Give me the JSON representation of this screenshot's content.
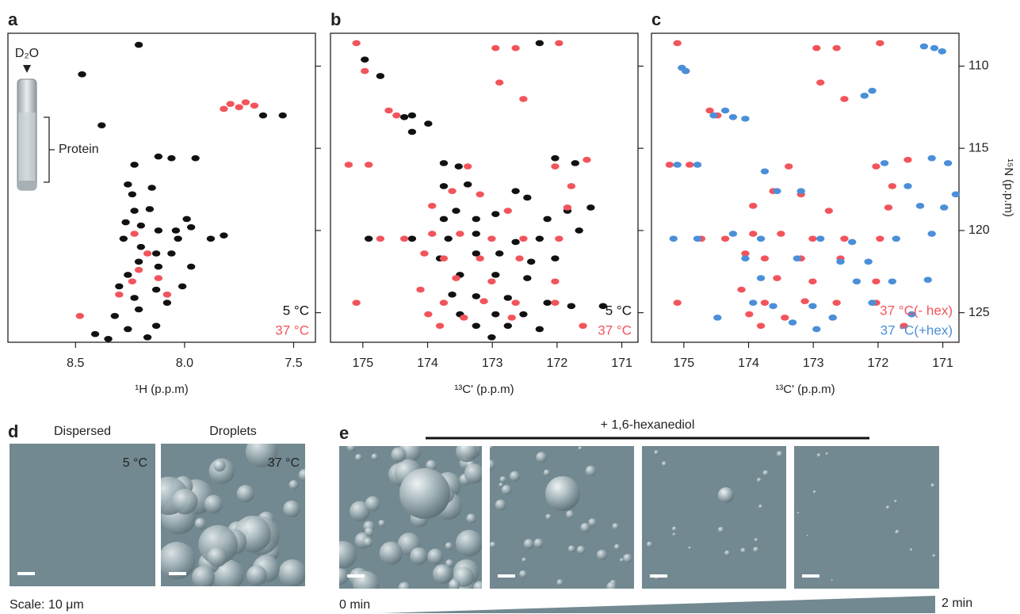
{
  "chart_data": [
    {
      "type": "scatter",
      "label": "a",
      "x_label": "¹H (p.p.m)",
      "annotations": [
        "D₂O",
        "Protein"
      ],
      "xlim": [
        8.81,
        7.4
      ],
      "ylim": [
        126.8,
        108
      ],
      "xticks": [
        8.5,
        {
          "value": 8,
          "label": "8.0"
        },
        7.5
      ],
      "yticks": [
        110,
        115,
        120,
        125
      ],
      "show_ytick_labels": false,
      "legend": "lower right",
      "series": [
        {
          "name": "5 °C",
          "color": "#111111",
          "x": [
            8.21,
            8.47,
            8.38,
            7.64,
            7.55,
            8.23,
            8.12,
            8.06,
            7.95,
            8.26,
            8.24,
            8.15,
            8.23,
            8.16,
            8.27,
            8.2,
            8.12,
            8.04,
            7.97,
            7.99,
            7.88,
            7.82,
            8.28,
            8.2,
            8.13,
            8.06,
            8.03,
            8.21,
            8.12,
            7.97,
            8.26,
            8.3,
            8.23,
            8.13,
            8.08,
            8.01,
            8.21,
            8.32,
            8.26,
            8.13,
            8.41,
            8.35,
            8.17
          ],
          "y": [
            108.7,
            110.5,
            113.6,
            113.0,
            113.0,
            116.0,
            115.5,
            115.6,
            115.6,
            117.2,
            117.8,
            117.4,
            118.8,
            118.7,
            119.5,
            119.7,
            120.0,
            120.0,
            119.8,
            119.3,
            120.5,
            120.3,
            120.5,
            121.0,
            121.4,
            121.4,
            120.5,
            121.9,
            122.2,
            122.2,
            122.7,
            123.4,
            124.1,
            123.6,
            124.4,
            123.4,
            124.8,
            125.2,
            126.0,
            125.8,
            126.3,
            126.6,
            126.5
          ]
        },
        {
          "name": "37 °C",
          "color": "#f2545b",
          "x": [
            7.79,
            7.75,
            7.72,
            7.82,
            7.68,
            8.23,
            8.17,
            8.24,
            8.12,
            8.3,
            8.21,
            8.48,
            8.08
          ],
          "y": [
            112.3,
            112.5,
            112.2,
            112.6,
            112.4,
            120.2,
            121.4,
            123.1,
            122.9,
            123.9,
            122.4,
            125.2,
            123.9
          ]
        }
      ]
    },
    {
      "type": "scatter",
      "label": "b",
      "x_label": "¹³C' (p.p.m)",
      "xlim": [
        175.5,
        170.75
      ],
      "ylim": [
        126.8,
        108
      ],
      "xticks": [
        175,
        174,
        173,
        172,
        171
      ],
      "yticks": [
        110,
        115,
        120,
        125
      ],
      "show_ytick_labels": false,
      "legend": "lower right",
      "series": [
        {
          "name": "5 °C",
          "color": "#111111",
          "x": [
            172.27,
            174.97,
            174.73,
            174.24,
            173.99,
            174.36,
            174.24,
            173.75,
            173.52,
            172.03,
            171.72,
            173.75,
            173.38,
            172.64,
            172.46,
            171.48,
            173.56,
            173.75,
            173.25,
            172.95,
            172.15,
            171.84,
            174.91,
            174.24,
            173.68,
            173.25,
            172.64,
            172.27,
            171.66,
            173.81,
            173.25,
            172.89,
            172.4,
            172.03,
            173.5,
            172.95,
            172.46,
            173.62,
            173.25,
            172.76,
            172.15,
            171.78,
            171.29,
            173.5,
            172.95,
            172.52,
            173.25,
            172.76,
            172.27,
            173.01
          ],
          "y": [
            108.6,
            109.6,
            110.6,
            113.0,
            113.5,
            113.1,
            114.0,
            115.9,
            116.1,
            115.6,
            115.9,
            117.3,
            117.2,
            117.6,
            118.0,
            118.6,
            118.8,
            119.3,
            119.3,
            119.0,
            119.3,
            118.8,
            120.5,
            120.5,
            120.5,
            120.2,
            120.7,
            120.5,
            120.0,
            121.7,
            121.4,
            121.4,
            121.9,
            121.7,
            122.7,
            122.7,
            122.9,
            123.9,
            124.0,
            124.1,
            124.4,
            124.6,
            124.6,
            125.1,
            125.1,
            125.1,
            125.8,
            125.8,
            126.0,
            126.5
          ]
        },
        {
          "name": "37 °C",
          "color": "#f2545b",
          "x": [
            175.1,
            172.95,
            172.64,
            171.97,
            174.97,
            174.6,
            174.48,
            172.89,
            172.52,
            174.91,
            175.22,
            173.38,
            172.03,
            171.54,
            173.62,
            173.19,
            171.78,
            173.93,
            172.76,
            171.84,
            174.73,
            174.36,
            173.93,
            173.5,
            173.01,
            172.52,
            171.97,
            174.05,
            173.75,
            173.19,
            172.58,
            173.56,
            173.01,
            172.03,
            174.11,
            173.75,
            173.13,
            172.64,
            172.03,
            173.44,
            172.7,
            173.81,
            171.6,
            175.1,
            173.99
          ],
          "y": [
            108.6,
            108.9,
            108.9,
            108.6,
            110.3,
            112.7,
            113.0,
            111.0,
            112.0,
            116.0,
            116.0,
            116.1,
            116.1,
            115.7,
            117.6,
            117.8,
            117.3,
            118.5,
            118.8,
            118.6,
            120.5,
            120.5,
            120.2,
            120.2,
            120.5,
            120.5,
            120.5,
            121.4,
            121.7,
            121.7,
            121.7,
            122.9,
            123.1,
            123.1,
            123.6,
            124.4,
            124.3,
            124.4,
            124.4,
            125.3,
            125.3,
            125.8,
            125.8,
            124.4,
            125.1
          ]
        }
      ]
    },
    {
      "type": "scatter",
      "label": "c",
      "x_label": "¹³C' (p.p.m)",
      "y_label": "¹⁵N (p.p.m)",
      "xlim": [
        175.5,
        170.75
      ],
      "ylim": [
        126.8,
        108
      ],
      "xticks": [
        175,
        174,
        173,
        172,
        171
      ],
      "yticks": [
        110,
        115,
        120,
        125
      ],
      "show_ytick_labels": true,
      "legend": "lower right",
      "series": [
        {
          "name": "37 °C(- hex)",
          "color": "#f2545b",
          "x": [
            175.1,
            172.95,
            172.64,
            171.97,
            174.97,
            174.6,
            174.48,
            172.89,
            172.52,
            174.91,
            175.22,
            173.38,
            172.03,
            171.54,
            173.62,
            173.19,
            171.78,
            173.93,
            172.76,
            171.84,
            174.73,
            174.36,
            173.93,
            173.5,
            173.01,
            172.52,
            171.97,
            174.05,
            173.75,
            173.19,
            172.58,
            173.56,
            173.01,
            172.03,
            174.11,
            173.75,
            173.13,
            172.64,
            172.03,
            173.44,
            172.7,
            173.81,
            171.6,
            175.1,
            173.99
          ],
          "y": [
            108.6,
            108.9,
            108.9,
            108.6,
            110.3,
            112.7,
            113.0,
            111.0,
            112.0,
            116.0,
            116.0,
            116.1,
            116.1,
            115.7,
            117.6,
            117.8,
            117.3,
            118.5,
            118.8,
            118.6,
            120.5,
            120.5,
            120.2,
            120.2,
            120.5,
            120.5,
            120.5,
            121.4,
            121.7,
            121.7,
            121.7,
            122.9,
            123.1,
            123.1,
            123.6,
            124.4,
            124.3,
            124.4,
            124.4,
            125.3,
            125.3,
            125.8,
            125.8,
            124.4,
            125.1
          ]
        },
        {
          "name": "37 °C(+hex)",
          "color": "#4a8fd8",
          "x": [
            171.13,
            171.29,
            171.01,
            174.97,
            175.03,
            174.36,
            174.24,
            174.54,
            174.05,
            172.09,
            172.21,
            174.79,
            171.9,
            171.17,
            170.92,
            175.1,
            173.75,
            173.56,
            173.19,
            171.54,
            170.8,
            171.35,
            170.98,
            175.16,
            174.79,
            174.24,
            173.81,
            172.89,
            172.4,
            171.72,
            171.17,
            174.05,
            173.25,
            172.58,
            172.15,
            173.81,
            172.33,
            171.78,
            171.23,
            173.93,
            173.62,
            173.01,
            172.09,
            173.32,
            172.7,
            172.95,
            174.48,
            171.48
          ],
          "y": [
            108.9,
            108.8,
            109.1,
            110.3,
            110.1,
            112.7,
            113.1,
            113.0,
            113.2,
            111.5,
            111.8,
            116.0,
            115.9,
            115.6,
            115.9,
            116.0,
            116.4,
            117.6,
            117.6,
            117.3,
            117.8,
            118.5,
            118.6,
            120.5,
            120.5,
            120.2,
            120.5,
            120.5,
            120.7,
            120.5,
            120.2,
            121.7,
            121.7,
            121.9,
            121.9,
            122.9,
            123.1,
            123.1,
            123.0,
            124.4,
            124.6,
            124.6,
            124.4,
            125.6,
            125.3,
            126.0,
            125.3,
            125.1
          ]
        }
      ]
    }
  ],
  "panel_d": {
    "label": "d",
    "captions": [
      "Dispersed",
      "Droplets"
    ],
    "temperatures": [
      "5 °C",
      "37 °C"
    ],
    "scale": "Scale: 10 μm"
  },
  "panel_e": {
    "label": "e",
    "treatment": "+ 1,6-hexanediol",
    "start": "0 min",
    "end": "2 min"
  }
}
